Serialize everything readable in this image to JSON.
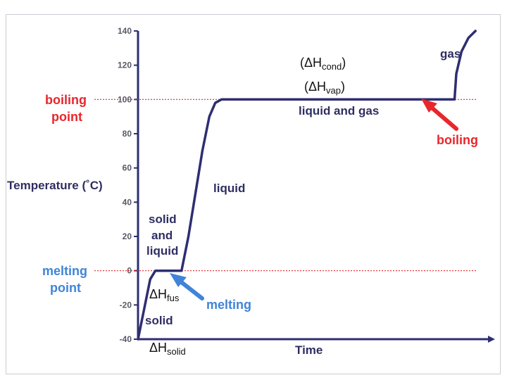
{
  "chart_data": {
    "type": "line",
    "title": "",
    "xlabel": "Time",
    "ylabel": "Temperature (˚C)",
    "ylim": [
      -40,
      140
    ],
    "yticks": [
      140,
      120,
      100,
      80,
      60,
      40,
      20,
      0,
      -20,
      -40
    ],
    "grid": false,
    "reference_lines": [
      {
        "label": "boiling point",
        "y": 100,
        "color": "#e8262c"
      },
      {
        "label": "melting point",
        "y": 0,
        "color": "#e8262c"
      }
    ],
    "series": [
      {
        "color": "#2e2e72",
        "points": [
          [
            0,
            -40
          ],
          [
            0.02,
            -20
          ],
          [
            0.035,
            -5
          ],
          [
            0.05,
            0
          ],
          [
            0.125,
            0
          ],
          [
            0.145,
            20
          ],
          [
            0.165,
            45
          ],
          [
            0.185,
            70
          ],
          [
            0.205,
            90
          ],
          [
            0.222,
            98
          ],
          [
            0.24,
            100
          ],
          [
            0.91,
            100
          ],
          [
            0.915,
            115
          ],
          [
            0.93,
            128
          ],
          [
            0.95,
            136
          ],
          [
            0.97,
            140
          ]
        ]
      }
    ],
    "region_labels": {
      "solid": "solid",
      "solid_liquid": [
        "solid",
        "and",
        "liquid"
      ],
      "liquid": "liquid",
      "liquid_gas": "liquid and gas",
      "gas": "gas"
    },
    "annotations": {
      "boiling_point": [
        "boiling",
        "point"
      ],
      "melting_point": [
        "melting",
        "point"
      ],
      "boiling": "boiling",
      "melting": "melting",
      "h_cond": {
        "pre": "(ΔH",
        "sub": "cond",
        "post": ")"
      },
      "h_vap": {
        "pre": "(ΔH",
        "sub": "vap",
        "post": ")"
      },
      "h_fus": {
        "pre": "ΔH",
        "sub": "fus"
      },
      "h_solid": {
        "pre": "ΔH",
        "sub": "solid"
      }
    },
    "colors": {
      "axis": "#2e2e72",
      "curve": "#2e2e72",
      "red": "#e8262c",
      "blue": "#3f84d8"
    }
  }
}
